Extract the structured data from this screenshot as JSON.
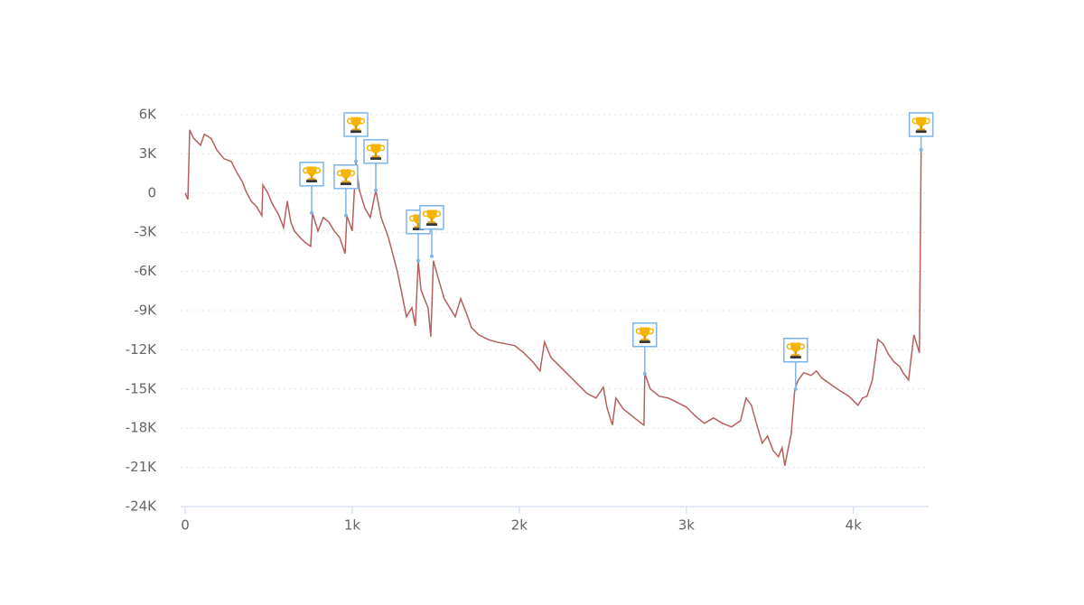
{
  "chart_data": {
    "type": "line",
    "x": [
      0,
      16,
      27,
      49,
      92,
      114,
      135,
      157,
      189,
      232,
      276,
      308,
      341,
      362,
      395,
      427,
      459,
      465,
      492,
      524,
      557,
      589,
      611,
      632,
      654,
      686,
      719,
      751,
      762,
      795,
      827,
      859,
      892,
      924,
      957,
      968,
      1000,
      1022,
      1043,
      1076,
      1108,
      1141,
      1173,
      1216,
      1249,
      1270,
      1303,
      1324,
      1357,
      1378,
      1395,
      1411,
      1432,
      1454,
      1470,
      1486,
      1519,
      1551,
      1584,
      1616,
      1649,
      1681,
      1714,
      1757,
      1811,
      1865,
      1919,
      1973,
      2027,
      2081,
      2124,
      2151,
      2189,
      2243,
      2297,
      2351,
      2405,
      2459,
      2503,
      2524,
      2557,
      2578,
      2622,
      2676,
      2730,
      2746,
      2751,
      2784,
      2838,
      2892,
      2946,
      3000,
      3054,
      3108,
      3162,
      3216,
      3270,
      3324,
      3357,
      3389,
      3422,
      3454,
      3486,
      3519,
      3551,
      3573,
      3589,
      3605,
      3627,
      3649,
      3670,
      3703,
      3746,
      3778,
      3811,
      3865,
      3919,
      3973,
      4027,
      4054,
      4081,
      4113,
      4146,
      4178,
      4211,
      4243,
      4276,
      4297,
      4330,
      4362,
      4395,
      4405
    ],
    "series": [
      {
        "color": "#b5605c",
        "values": [
          0,
          -484,
          4838,
          4216,
          3663,
          4493,
          4355,
          4147,
          3318,
          2627,
          2419,
          1590,
          899,
          207,
          -622,
          -1037,
          -1728,
          622,
          69,
          -899,
          -1590,
          -2627,
          -622,
          -2212,
          -2903,
          -3387,
          -3802,
          -4078,
          -1521,
          -2903,
          -1866,
          -2212,
          -2903,
          -3387,
          -4631,
          -1728,
          -2903,
          2419,
          207,
          -1175,
          -1866,
          207,
          -1866,
          -3387,
          -4977,
          -6013,
          -8087,
          -9469,
          -8778,
          -10161,
          -5184,
          -7396,
          -8087,
          -8778,
          -10990,
          -5184,
          -6705,
          -8087,
          -8778,
          -9469,
          -8087,
          -9124,
          -10299,
          -10852,
          -11197,
          -11405,
          -11543,
          -11681,
          -12234,
          -12925,
          -13617,
          -11405,
          -12580,
          -13271,
          -13962,
          -14653,
          -15345,
          -15690,
          -14861,
          -16381,
          -17764,
          -15690,
          -16520,
          -17073,
          -17626,
          -17764,
          -13824,
          -14999,
          -15552,
          -15690,
          -16036,
          -16381,
          -17073,
          -17626,
          -17211,
          -17626,
          -17902,
          -17418,
          -15690,
          -16243,
          -17764,
          -19146,
          -18593,
          -19699,
          -20183,
          -19492,
          -20874,
          -19837,
          -18455,
          -14999,
          -14308,
          -13755,
          -13962,
          -13617,
          -14170,
          -14653,
          -15137,
          -15552,
          -16243,
          -15690,
          -15552,
          -14308,
          -11197,
          -11543,
          -12372,
          -12925,
          -13271,
          -13755,
          -14308,
          -10852,
          -12234,
          3318
        ]
      }
    ],
    "annotations": [
      {
        "x": 757,
        "y": -1521
      },
      {
        "x": 962,
        "y": -1728
      },
      {
        "x": 1022,
        "y": 2419
      },
      {
        "x": 1141,
        "y": 207
      },
      {
        "x": 1395,
        "y": -5184
      },
      {
        "x": 1476,
        "y": -4838
      },
      {
        "x": 2751,
        "y": -13824
      },
      {
        "x": 3654,
        "y": -14999
      },
      {
        "x": 4405,
        "y": 3318
      }
    ],
    "xlim": [
      -27,
      4450
    ],
    "xticks": [
      0,
      {
        "value": 1000,
        "label": "1k"
      },
      {
        "value": 2000,
        "label": "2k"
      },
      {
        "value": 3000,
        "label": "3k"
      },
      {
        "value": 4000,
        "label": "4k"
      }
    ],
    "ylim": [
      -24000,
      6000
    ],
    "yticks": [
      {
        "value": 6000,
        "label": "6K"
      },
      {
        "value": 3000,
        "label": "3K"
      },
      0,
      {
        "value": -3000,
        "label": "-3K"
      },
      {
        "value": -6000,
        "label": "-6K"
      },
      {
        "value": -9000,
        "label": "-9K"
      },
      {
        "value": -12000,
        "label": "-12K"
      },
      {
        "value": -15000,
        "label": "-15K"
      },
      {
        "value": -18000,
        "label": "-18K"
      },
      {
        "value": -21000,
        "label": "-21K"
      },
      {
        "value": -24000,
        "label": "-24K"
      }
    ],
    "grid": true
  }
}
